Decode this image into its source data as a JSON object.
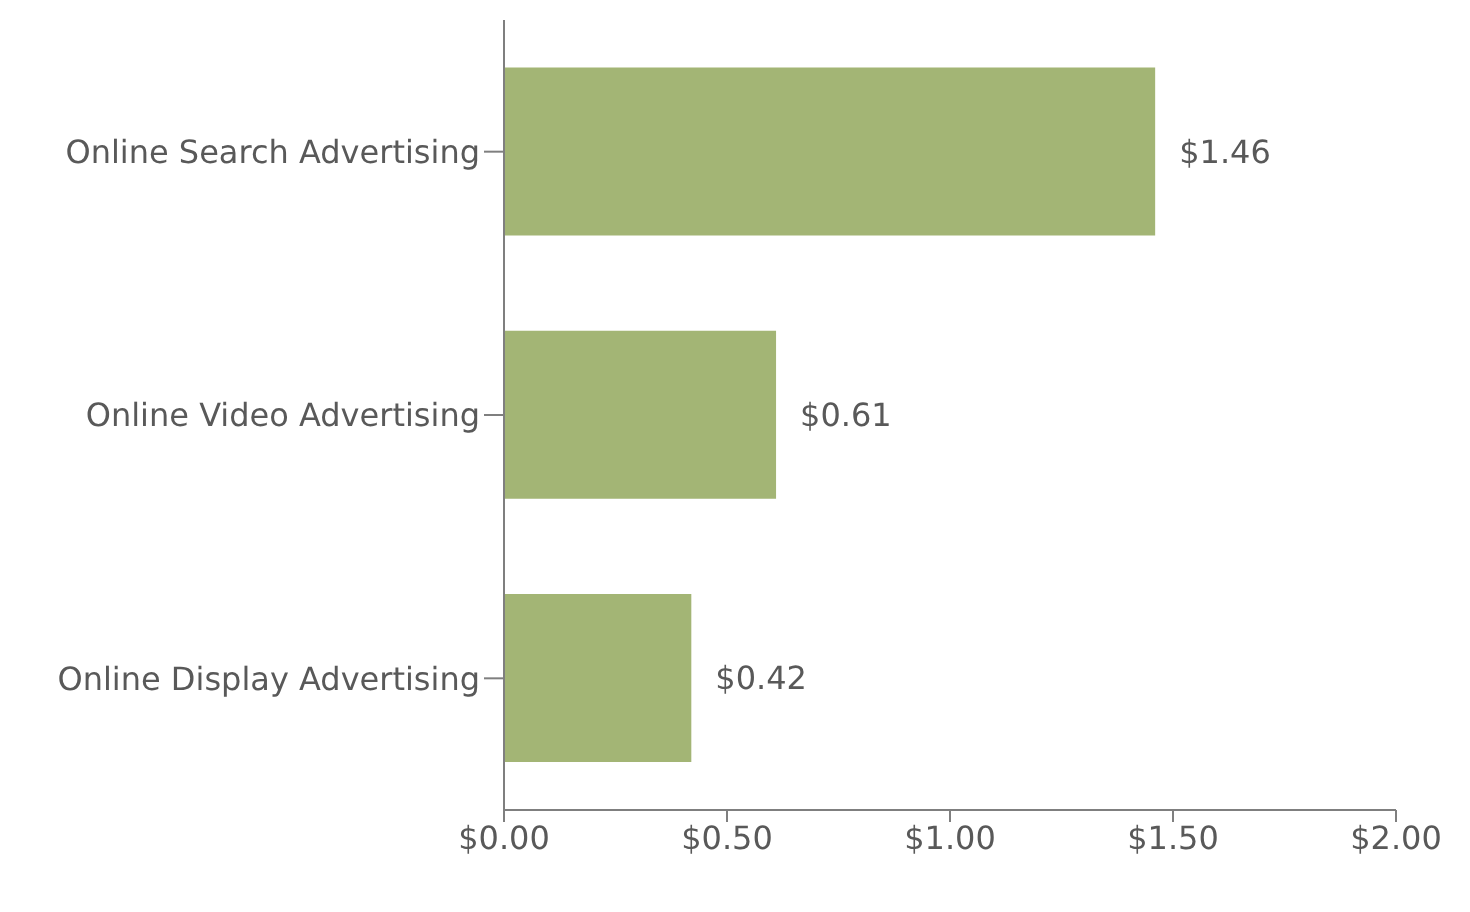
{
  "chart_data": {
    "type": "bar",
    "orientation": "horizontal",
    "categories": [
      "Online Search Advertising",
      "Online Video Advertising",
      "Online Display Advertising"
    ],
    "values": [
      1.46,
      0.61,
      0.42
    ],
    "value_labels": [
      "$1.46",
      "$0.61",
      "$0.42"
    ],
    "color": "#a3b575",
    "xlim": [
      0,
      2
    ],
    "xticks": [
      {
        "value": 0,
        "label": "$0.00"
      },
      {
        "value": 0.5,
        "label": "$0.50"
      },
      {
        "value": 1,
        "label": "$1.00"
      },
      {
        "value": 1.5,
        "label": "$1.50"
      },
      {
        "value": 2,
        "label": "$2.00"
      }
    ],
    "grid": false,
    "legend": false
  }
}
